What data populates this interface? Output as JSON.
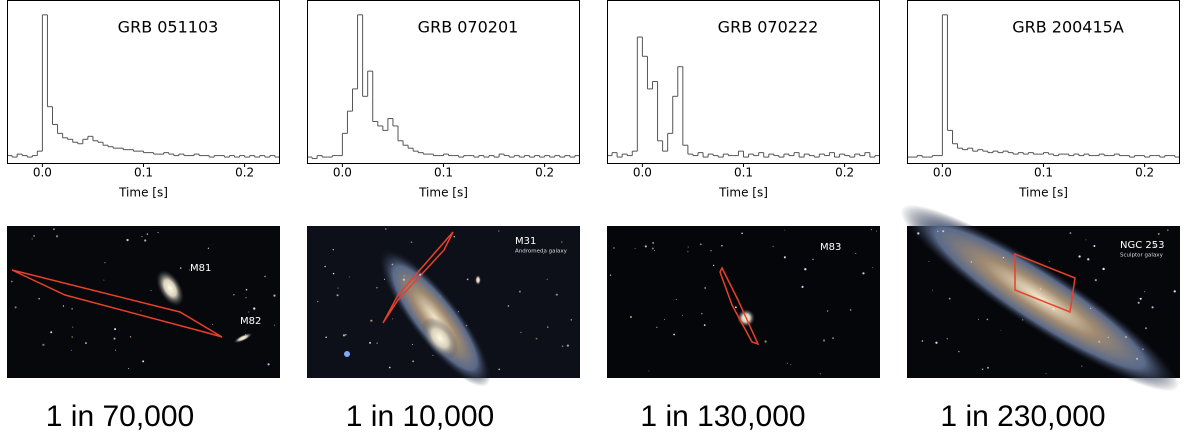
{
  "chart_data": [
    {
      "type": "histogram",
      "title": "GRB 051103",
      "x_label": "Time [s]",
      "color": "#555555",
      "bins": [
        -0.035,
        -0.03,
        -0.025,
        -0.02,
        -0.015,
        -0.01,
        -0.005,
        0,
        0.005,
        0.01,
        0.015,
        0.02,
        0.025,
        0.03,
        0.035,
        0.04,
        0.045,
        0.05,
        0.055,
        0.06,
        0.065,
        0.07,
        0.075,
        0.08,
        0.085,
        0.09,
        0.095,
        0.1,
        0.105,
        0.11,
        0.115,
        0.12,
        0.125,
        0.13,
        0.135,
        0.14,
        0.145,
        0.15,
        0.155,
        0.16,
        0.165,
        0.17,
        0.175,
        0.18,
        0.185,
        0.19,
        0.195,
        0.2,
        0.205,
        0.21,
        0.215,
        0.22,
        0.225,
        0.23,
        0.235
      ],
      "values": [
        0.05,
        0.04,
        0.06,
        0.05,
        0.04,
        0.05,
        0.08,
        1.0,
        0.38,
        0.26,
        0.2,
        0.17,
        0.16,
        0.14,
        0.13,
        0.16,
        0.18,
        0.15,
        0.14,
        0.12,
        0.11,
        0.1,
        0.1,
        0.09,
        0.09,
        0.08,
        0.08,
        0.07,
        0.07,
        0.06,
        0.06,
        0.07,
        0.06,
        0.05,
        0.06,
        0.05,
        0.05,
        0.06,
        0.05,
        0.05,
        0.04,
        0.05,
        0.05,
        0.04,
        0.05,
        0.04,
        0.05,
        0.04,
        0.05,
        0.04,
        0.05,
        0.04,
        0.05,
        0.04
      ],
      "xlim": [
        -0.035,
        0.235
      ],
      "ylim": [
        0,
        1.1
      ],
      "xticks": [
        {
          "value": 0,
          "label": "0.0"
        },
        0.1,
        0.2
      ]
    },
    {
      "type": "histogram",
      "title": "GRB 070201",
      "x_label": "Time [s]",
      "color": "#555555",
      "bins": [
        -0.035,
        -0.03,
        -0.025,
        -0.02,
        -0.015,
        -0.01,
        -0.005,
        0,
        0.005,
        0.01,
        0.015,
        0.02,
        0.025,
        0.03,
        0.035,
        0.04,
        0.045,
        0.05,
        0.055,
        0.06,
        0.065,
        0.07,
        0.075,
        0.08,
        0.085,
        0.09,
        0.095,
        0.1,
        0.105,
        0.11,
        0.115,
        0.12,
        0.125,
        0.13,
        0.135,
        0.14,
        0.145,
        0.15,
        0.155,
        0.16,
        0.165,
        0.17,
        0.175,
        0.18,
        0.185,
        0.19,
        0.195,
        0.2,
        0.205,
        0.21,
        0.215,
        0.22,
        0.225,
        0.23,
        0.235
      ],
      "values": [
        0.04,
        0.03,
        0.05,
        0.04,
        0.04,
        0.05,
        0.05,
        0.2,
        0.35,
        0.5,
        1.0,
        0.45,
        0.62,
        0.28,
        0.25,
        0.22,
        0.3,
        0.25,
        0.15,
        0.12,
        0.1,
        0.08,
        0.07,
        0.06,
        0.06,
        0.05,
        0.05,
        0.06,
        0.05,
        0.05,
        0.04,
        0.05,
        0.05,
        0.04,
        0.05,
        0.04,
        0.05,
        0.04,
        0.06,
        0.05,
        0.04,
        0.05,
        0.04,
        0.05,
        0.04,
        0.05,
        0.04,
        0.05,
        0.04,
        0.05,
        0.04,
        0.05,
        0.04,
        0.05
      ],
      "xlim": [
        -0.035,
        0.235
      ],
      "ylim": [
        0,
        1.1
      ],
      "xticks": [
        {
          "value": 0,
          "label": "0.0"
        },
        0.1,
        0.2
      ]
    },
    {
      "type": "histogram",
      "title": "GRB 070222",
      "x_label": "Time [s]",
      "color": "#555555",
      "bins": [
        -0.035,
        -0.03,
        -0.025,
        -0.02,
        -0.015,
        -0.01,
        -0.005,
        0,
        0.005,
        0.01,
        0.015,
        0.02,
        0.025,
        0.03,
        0.035,
        0.04,
        0.045,
        0.05,
        0.055,
        0.06,
        0.065,
        0.07,
        0.075,
        0.08,
        0.085,
        0.09,
        0.095,
        0.1,
        0.105,
        0.11,
        0.115,
        0.12,
        0.125,
        0.13,
        0.135,
        0.14,
        0.145,
        0.15,
        0.155,
        0.16,
        0.165,
        0.17,
        0.175,
        0.18,
        0.185,
        0.19,
        0.195,
        0.2,
        0.205,
        0.21,
        0.215,
        0.22,
        0.225,
        0.23,
        0.235
      ],
      "values": [
        0.05,
        0.07,
        0.04,
        0.06,
        0.05,
        0.08,
        0.85,
        0.72,
        0.5,
        0.55,
        0.15,
        0.08,
        0.2,
        0.45,
        0.65,
        0.12,
        0.06,
        0.05,
        0.07,
        0.04,
        0.06,
        0.05,
        0.04,
        0.06,
        0.05,
        0.05,
        0.08,
        0.04,
        0.06,
        0.05,
        0.07,
        0.04,
        0.06,
        0.05,
        0.04,
        0.06,
        0.05,
        0.07,
        0.04,
        0.06,
        0.05,
        0.04,
        0.06,
        0.05,
        0.07,
        0.04,
        0.06,
        0.05,
        0.04,
        0.06,
        0.05,
        0.07,
        0.04,
        0.05
      ],
      "xlim": [
        -0.035,
        0.235
      ],
      "ylim": [
        0,
        1.1
      ],
      "xticks": [
        {
          "value": 0,
          "label": "0.0"
        },
        0.1,
        0.2
      ]
    },
    {
      "type": "histogram",
      "title": "GRB 200415A",
      "x_label": "Time [s]",
      "color": "#555555",
      "bins": [
        -0.035,
        -0.03,
        -0.025,
        -0.02,
        -0.015,
        -0.01,
        -0.005,
        0,
        0.005,
        0.01,
        0.015,
        0.02,
        0.025,
        0.03,
        0.035,
        0.04,
        0.045,
        0.05,
        0.055,
        0.06,
        0.065,
        0.07,
        0.075,
        0.08,
        0.085,
        0.09,
        0.095,
        0.1,
        0.105,
        0.11,
        0.115,
        0.12,
        0.125,
        0.13,
        0.135,
        0.14,
        0.145,
        0.15,
        0.155,
        0.16,
        0.165,
        0.17,
        0.175,
        0.18,
        0.185,
        0.19,
        0.195,
        0.2,
        0.205,
        0.21,
        0.215,
        0.22,
        0.225,
        0.23,
        0.235
      ],
      "values": [
        0.04,
        0.04,
        0.05,
        0.04,
        0.04,
        0.05,
        0.05,
        1.0,
        0.22,
        0.13,
        0.1,
        0.09,
        0.1,
        0.08,
        0.09,
        0.08,
        0.07,
        0.08,
        0.07,
        0.08,
        0.07,
        0.06,
        0.07,
        0.06,
        0.07,
        0.06,
        0.06,
        0.07,
        0.06,
        0.05,
        0.06,
        0.06,
        0.05,
        0.06,
        0.05,
        0.06,
        0.05,
        0.05,
        0.06,
        0.05,
        0.05,
        0.06,
        0.05,
        0.05,
        0.04,
        0.05,
        0.05,
        0.04,
        0.05,
        0.05,
        0.04,
        0.05,
        0.05,
        0.04
      ],
      "xlim": [
        -0.035,
        0.235
      ],
      "ylim": [
        0,
        1.1
      ],
      "xticks": [
        {
          "value": 0,
          "label": "0.0"
        },
        0.1,
        0.2
      ]
    }
  ],
  "images": [
    {
      "labels": [
        "M81",
        "M82"
      ]
    },
    {
      "labels": [
        "M31",
        "Andromeda galaxy"
      ]
    },
    {
      "labels": [
        "M83"
      ]
    },
    {
      "labels": [
        "NGC 253",
        "Sculptor galaxy"
      ]
    }
  ],
  "captions": [
    "1 in 70,000",
    "1 in 10,000",
    "1 in 130,000",
    "1 in 230,000"
  ]
}
